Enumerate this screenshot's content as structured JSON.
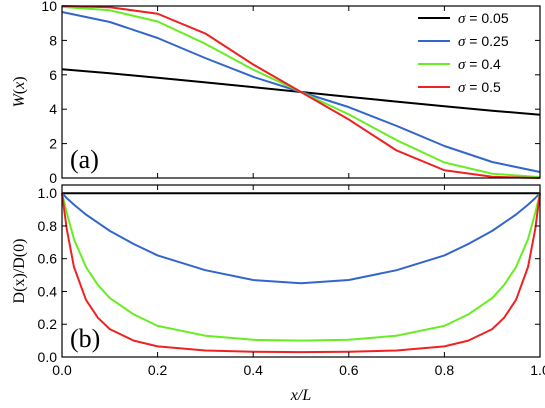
{
  "chart_data": [
    {
      "panel": "(a)",
      "type": "line",
      "ylabel": "W(x)",
      "xlabel": "",
      "xlim": [
        0,
        1
      ],
      "ylim": [
        0,
        10
      ],
      "yticks": [
        0,
        2,
        4,
        6,
        8,
        10
      ],
      "xticks": [
        0.0,
        0.2,
        0.4,
        0.6,
        0.8,
        1.0
      ],
      "legend": "top-right",
      "grid": false,
      "x": [
        0.0,
        0.1,
        0.2,
        0.3,
        0.4,
        0.5,
        0.6,
        0.7,
        0.8,
        0.9,
        1.0
      ],
      "series": [
        {
          "name": "σ = 0.05",
          "color": "#000000",
          "values": [
            6.32,
            6.09,
            5.83,
            5.56,
            5.28,
            5.0,
            4.72,
            4.44,
            4.17,
            3.91,
            3.68
          ]
        },
        {
          "name": "σ = 0.25",
          "color": "#3366cc",
          "values": [
            9.65,
            9.07,
            8.14,
            6.97,
            5.88,
            5.0,
            4.12,
            3.03,
            1.86,
            0.93,
            0.35
          ]
        },
        {
          "name": "σ = 0.4",
          "color": "#66ee22",
          "values": [
            9.95,
            9.75,
            9.1,
            7.8,
            6.3,
            5.0,
            3.7,
            2.2,
            0.9,
            0.25,
            0.05
          ]
        },
        {
          "name": "σ = 0.5",
          "color": "#ee2222",
          "values": [
            10.0,
            9.93,
            9.55,
            8.4,
            6.6,
            5.0,
            3.4,
            1.6,
            0.45,
            0.07,
            0.0
          ]
        }
      ]
    },
    {
      "panel": "(b)",
      "type": "line",
      "ylabel": "D(x)/D(0)",
      "xlabel": "x/L",
      "xlim": [
        0,
        1
      ],
      "ylim": [
        0,
        1.05
      ],
      "yticks": [
        0.0,
        0.2,
        0.4,
        0.6,
        0.8,
        1.0
      ],
      "xticks": [
        0.0,
        0.2,
        0.4,
        0.6,
        0.8,
        1.0
      ],
      "grid": false,
      "x": [
        0.0,
        0.01,
        0.025,
        0.05,
        0.075,
        0.1,
        0.15,
        0.2,
        0.3,
        0.4,
        0.5,
        0.6,
        0.7,
        0.8,
        0.85,
        0.9,
        0.925,
        0.95,
        0.975,
        0.99,
        1.0
      ],
      "series": [
        {
          "name": "σ = 0.05",
          "color": "#000000",
          "values": [
            1.0,
            1.0,
            1.0,
            1.0,
            1.0,
            1.0,
            1.0,
            1.0,
            1.0,
            1.0,
            1.0,
            1.0,
            1.0,
            1.0,
            1.0,
            1.0,
            1.0,
            1.0,
            1.0,
            1.0,
            1.0
          ]
        },
        {
          "name": "σ = 0.25",
          "color": "#3366cc",
          "values": [
            1.0,
            0.97,
            0.93,
            0.87,
            0.82,
            0.77,
            0.69,
            0.62,
            0.53,
            0.47,
            0.45,
            0.47,
            0.53,
            0.62,
            0.69,
            0.77,
            0.82,
            0.87,
            0.93,
            0.97,
            1.0
          ]
        },
        {
          "name": "σ = 0.4",
          "color": "#66ee22",
          "values": [
            1.0,
            0.88,
            0.72,
            0.55,
            0.44,
            0.36,
            0.26,
            0.19,
            0.13,
            0.105,
            0.1,
            0.105,
            0.13,
            0.19,
            0.26,
            0.36,
            0.44,
            0.55,
            0.72,
            0.88,
            1.0
          ]
        },
        {
          "name": "σ = 0.5",
          "color": "#ee2222",
          "values": [
            1.0,
            0.78,
            0.55,
            0.35,
            0.24,
            0.17,
            0.1,
            0.065,
            0.04,
            0.032,
            0.03,
            0.032,
            0.04,
            0.065,
            0.1,
            0.17,
            0.24,
            0.35,
            0.55,
            0.78,
            1.0
          ]
        }
      ]
    }
  ]
}
